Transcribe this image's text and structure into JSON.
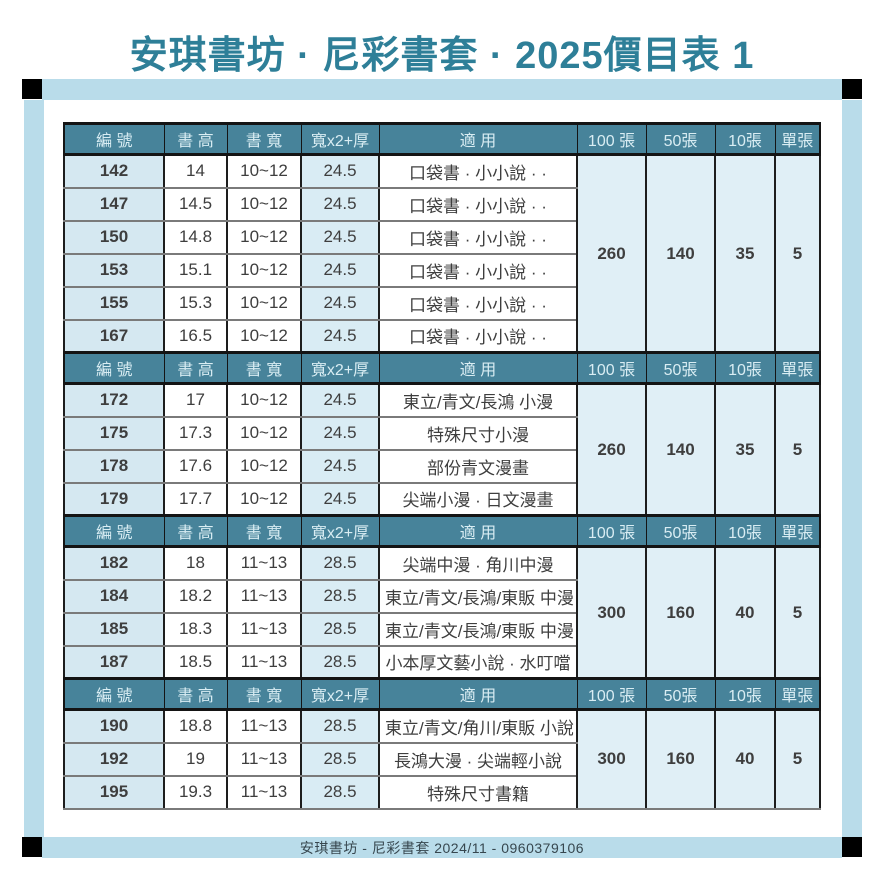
{
  "title": "安琪書坊 · 尼彩書套 · 2025價目表 1",
  "footer": "安琪書坊 - 尼彩書套 2024/11 - 0960379106",
  "columns": [
    "編 號",
    "書 高",
    "書 寬",
    "寬x2+厚",
    "適 用",
    "100 張",
    "50張",
    "10張",
    "單張"
  ],
  "colors": {
    "title_text": "#2e7f98",
    "frame_blue": "#b9dcea",
    "header_bg": "#47839a",
    "header_text": "#d9edf3",
    "code_cell_bg": "#d5e8f1",
    "w2t_cell_bg": "#d9ecf4",
    "price_cell_bg": "#e0eff6",
    "body_text": "#3e3e3e",
    "footer_text": "#37474f",
    "price_100": "#0d0d0d",
    "price_50": "#ee1111",
    "price_10": "#2273c5",
    "price_1": "#2273c5"
  },
  "sections": [
    {
      "rows": [
        {
          "code": "142",
          "book_height": "14",
          "book_width": "10~12",
          "w2t": "24.5",
          "use": "口袋書 · 小小說 · ·"
        },
        {
          "code": "147",
          "book_height": "14.5",
          "book_width": "10~12",
          "w2t": "24.5",
          "use": "口袋書 · 小小說 · ·"
        },
        {
          "code": "150",
          "book_height": "14.8",
          "book_width": "10~12",
          "w2t": "24.5",
          "use": "口袋書 · 小小說 · ·"
        },
        {
          "code": "153",
          "book_height": "15.1",
          "book_width": "10~12",
          "w2t": "24.5",
          "use": "口袋書 · 小小說 · ·"
        },
        {
          "code": "155",
          "book_height": "15.3",
          "book_width": "10~12",
          "w2t": "24.5",
          "use": "口袋書 · 小小說 · ·"
        },
        {
          "code": "167",
          "book_height": "16.5",
          "book_width": "10~12",
          "w2t": "24.5",
          "use": "口袋書 · 小小說 · ·"
        }
      ],
      "prices": {
        "per_100": "260",
        "per_50": "140",
        "per_10": "35",
        "per_1": "5"
      }
    },
    {
      "rows": [
        {
          "code": "172",
          "book_height": "17",
          "book_width": "10~12",
          "w2t": "24.5",
          "use": "東立/青文/長鴻 小漫"
        },
        {
          "code": "175",
          "book_height": "17.3",
          "book_width": "10~12",
          "w2t": "24.5",
          "use": "特殊尺寸小漫"
        },
        {
          "code": "178",
          "book_height": "17.6",
          "book_width": "10~12",
          "w2t": "24.5",
          "use": "部份青文漫畫"
        },
        {
          "code": "179",
          "book_height": "17.7",
          "book_width": "10~12",
          "w2t": "24.5",
          "use": "尖端小漫 · 日文漫畫"
        }
      ],
      "prices": {
        "per_100": "260",
        "per_50": "140",
        "per_10": "35",
        "per_1": "5"
      }
    },
    {
      "rows": [
        {
          "code": "182",
          "book_height": "18",
          "book_width": "11~13",
          "w2t": "28.5",
          "use": "尖端中漫 · 角川中漫"
        },
        {
          "code": "184",
          "book_height": "18.2",
          "book_width": "11~13",
          "w2t": "28.5",
          "use": "東立/青文/長鴻/東販 中漫"
        },
        {
          "code": "185",
          "book_height": "18.3",
          "book_width": "11~13",
          "w2t": "28.5",
          "use": "東立/青文/長鴻/東販 中漫"
        },
        {
          "code": "187",
          "book_height": "18.5",
          "book_width": "11~13",
          "w2t": "28.5",
          "use": "小本厚文藝小說 · 水叮噹"
        }
      ],
      "prices": {
        "per_100": "300",
        "per_50": "160",
        "per_10": "40",
        "per_1": "5"
      }
    },
    {
      "rows": [
        {
          "code": "190",
          "book_height": "18.8",
          "book_width": "11~13",
          "w2t": "28.5",
          "use": "東立/青文/角川/東販 小說"
        },
        {
          "code": "192",
          "book_height": "19",
          "book_width": "11~13",
          "w2t": "28.5",
          "use": "長鴻大漫 · 尖端輕小說"
        },
        {
          "code": "195",
          "book_height": "19.3",
          "book_width": "11~13",
          "w2t": "28.5",
          "use": "特殊尺寸書籍"
        }
      ],
      "prices": {
        "per_100": "300",
        "per_50": "160",
        "per_10": "40",
        "per_1": "5"
      }
    }
  ]
}
